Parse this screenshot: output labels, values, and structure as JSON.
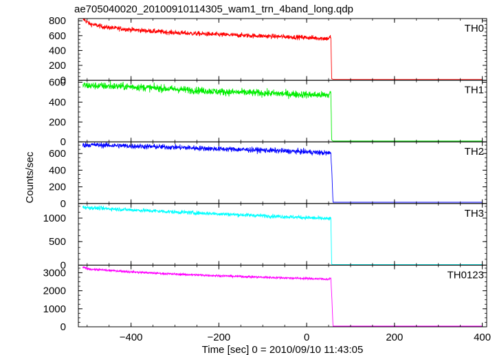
{
  "chart_data": {
    "type": "line",
    "title": "ae705040020_20100910114305_wam1_trn_4band_long.qdp",
    "xlabel": "Time [sec] 0 = 2010/09/10 11:43:05",
    "ylabel": "Counts/sec",
    "xlim": [
      -520,
      410
    ],
    "x_ticks": [
      -400,
      -200,
      0,
      200,
      400
    ],
    "grid": false,
    "panels": [
      {
        "name": "TH0",
        "color": "#ff0000",
        "ylim": [
          0,
          830
        ],
        "y_ticks": [
          0,
          200,
          400,
          600,
          800
        ],
        "noise": 30,
        "x": [
          -510,
          -495,
          -460,
          -400,
          -300,
          -200,
          -100,
          0,
          50,
          55,
          57,
          60,
          100,
          200,
          300,
          400
        ],
        "y": [
          830,
          760,
          715,
          680,
          640,
          615,
          595,
          575,
          560,
          590,
          20,
          12,
          12,
          12,
          12,
          12
        ]
      },
      {
        "name": "TH1",
        "color": "#00ee00",
        "ylim": [
          0,
          620
        ],
        "y_ticks": [
          0,
          200,
          400,
          600
        ],
        "noise": 35,
        "x": [
          -510,
          -495,
          -400,
          -300,
          -200,
          -100,
          0,
          50,
          55,
          57,
          60,
          100,
          200,
          300,
          400
        ],
        "y": [
          570,
          565,
          555,
          530,
          505,
          490,
          475,
          470,
          495,
          20,
          8,
          8,
          8,
          8,
          8
        ],
        "spikes": [
          [
            -447,
            620
          ]
        ]
      },
      {
        "name": "TH2",
        "color": "#0000ff",
        "ylim": [
          0,
          740
        ],
        "y_ticks": [
          0,
          200,
          400,
          600
        ],
        "noise": 30,
        "x": [
          -510,
          -495,
          -400,
          -300,
          -200,
          -100,
          0,
          50,
          55,
          57,
          60,
          100,
          200,
          300,
          400
        ],
        "y": [
          700,
          705,
          690,
          675,
          655,
          640,
          620,
          605,
          610,
          420,
          15,
          15,
          15,
          15,
          15
        ]
      },
      {
        "name": "TH3",
        "color": "#00ffff",
        "ylim": [
          0,
          1310
        ],
        "y_ticks": [
          0,
          500,
          1000
        ],
        "noise": 40,
        "x": [
          -510,
          -495,
          -400,
          -300,
          -200,
          -100,
          0,
          50,
          55,
          57,
          60,
          100,
          200,
          300,
          400
        ],
        "y": [
          1230,
          1220,
          1175,
          1130,
          1090,
          1050,
          1010,
          985,
          990,
          20,
          12,
          12,
          12,
          12,
          12
        ]
      },
      {
        "name": "TH0123",
        "color": "#ff00ff",
        "ylim": [
          0,
          3420
        ],
        "y_ticks": [
          0,
          1000,
          2000,
          3000
        ],
        "noise": 60,
        "x": [
          -510,
          -495,
          -400,
          -300,
          -200,
          -100,
          0,
          50,
          55,
          57,
          60,
          100,
          200,
          300,
          400
        ],
        "y": [
          3300,
          3200,
          3050,
          2920,
          2830,
          2750,
          2680,
          2640,
          2700,
          1780,
          40,
          40,
          40,
          40,
          40
        ]
      }
    ]
  }
}
